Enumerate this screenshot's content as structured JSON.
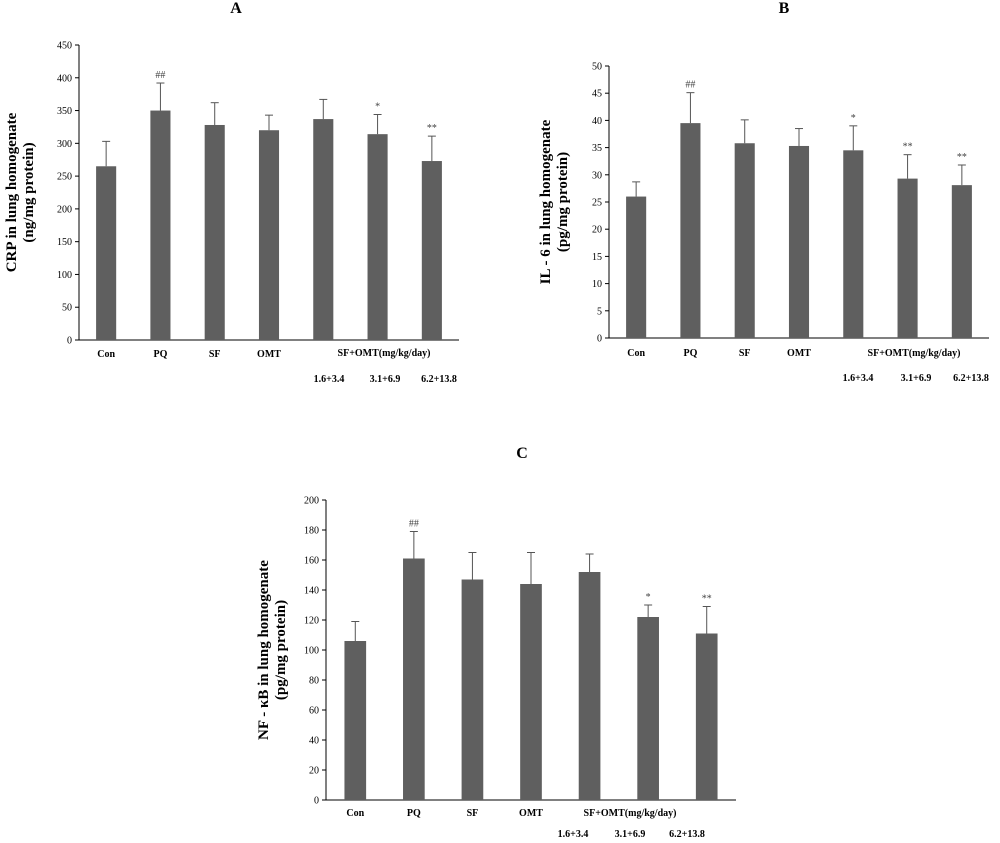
{
  "chart_data": [
    {
      "type": "bar",
      "title": "A",
      "ylabel_line1": "CRP in lung homogenate",
      "ylabel_line2": "(ng/mg protein)",
      "ylim": [
        0,
        450
      ],
      "yticks": [
        0,
        50,
        100,
        150,
        200,
        250,
        300,
        350,
        400,
        450
      ],
      "categories": [
        "Con",
        "PQ",
        "SF",
        "OMT",
        "",
        "",
        ""
      ],
      "group_label": "SF+OMT(mg/kg/day)",
      "dose_labels": [
        "1.6+3.4",
        "3.1+6.9",
        "6.2+13.8"
      ],
      "values": [
        265,
        350,
        328,
        320,
        337,
        314,
        273
      ],
      "errors": [
        38,
        42,
        34,
        23,
        30,
        30,
        38
      ],
      "significance": [
        "",
        "##",
        "",
        "",
        "",
        "*",
        "**"
      ]
    },
    {
      "type": "bar",
      "title": "B",
      "ylabel_line1": "IL - 6 in lung homogenate",
      "ylabel_line2": "(pg/mg protein)",
      "ylim": [
        0,
        50
      ],
      "yticks": [
        0,
        5,
        10,
        15,
        20,
        25,
        30,
        35,
        40,
        45,
        50
      ],
      "categories": [
        "Con",
        "PQ",
        "SF",
        "OMT",
        "",
        "",
        ""
      ],
      "group_label": "SF+OMT(mg/kg/day)",
      "dose_labels": [
        "1.6+3.4",
        "3.1+6.9",
        "6.2+13.8"
      ],
      "values": [
        26,
        39.5,
        35.8,
        35.3,
        34.5,
        29.3,
        28.1
      ],
      "errors": [
        2.7,
        5.6,
        4.3,
        3.2,
        4.5,
        4.4,
        3.7
      ],
      "significance": [
        "",
        "##",
        "",
        "",
        "*",
        "**",
        "**"
      ]
    },
    {
      "type": "bar",
      "title": "C",
      "ylabel_line1": "NF - κB in lung homogenate",
      "ylabel_line2": "(pg/mg protein)",
      "ylim": [
        0,
        200
      ],
      "yticks": [
        0,
        20,
        40,
        60,
        80,
        100,
        120,
        140,
        160,
        180,
        200
      ],
      "categories": [
        "Con",
        "PQ",
        "SF",
        "OMT",
        "",
        "",
        ""
      ],
      "group_label": "SF+OMT(mg/kg/day)",
      "dose_labels": [
        "1.6+3.4",
        "3.1+6.9",
        "6.2+13.8"
      ],
      "values": [
        106,
        161,
        147,
        144,
        152,
        122,
        111
      ],
      "errors": [
        13,
        18,
        18,
        21,
        12,
        8,
        18
      ],
      "significance": [
        "",
        "##",
        "",
        "",
        "",
        "*",
        "**"
      ]
    }
  ]
}
